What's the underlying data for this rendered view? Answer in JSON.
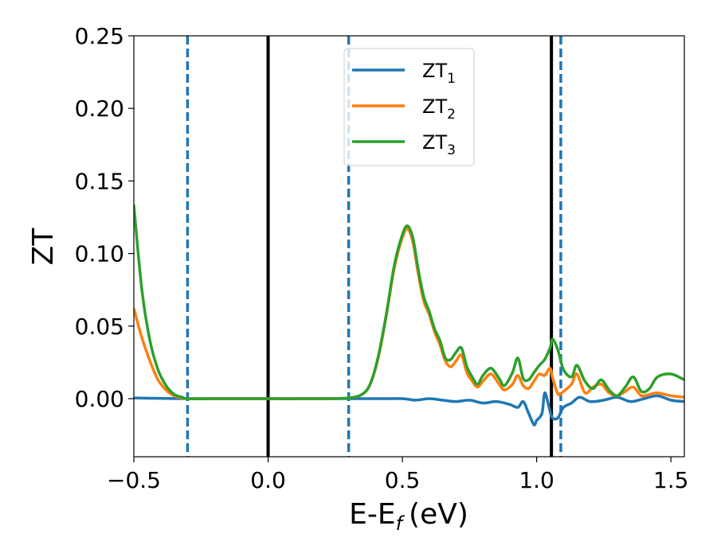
{
  "chart_data": {
    "type": "line",
    "xlabel": "E-E",
    "xlabel_sub": "f",
    "xlabel_unit": "(eV)",
    "ylabel": "ZT",
    "xlim": [
      -0.5,
      1.55
    ],
    "ylim": [
      -0.04,
      0.25
    ],
    "x_ticks": [
      -0.5,
      0.0,
      0.5,
      1.0,
      1.5
    ],
    "x_tick_labels": [
      "−0.5",
      "0.0",
      "0.5",
      "1.0",
      "1.5"
    ],
    "y_ticks": [
      0.0,
      0.05,
      0.1,
      0.15,
      0.2,
      0.25
    ],
    "y_tick_labels": [
      "0.00",
      "0.05",
      "0.10",
      "0.15",
      "0.20",
      "0.25"
    ],
    "grid": false,
    "legend_position": "top-center",
    "vertical_lines": [
      {
        "x": -0.3,
        "style": "dashed",
        "color": "#1f77b4"
      },
      {
        "x": 0.0,
        "style": "solid",
        "color": "#000000"
      },
      {
        "x": 0.3,
        "style": "dashed",
        "color": "#1f77b4"
      },
      {
        "x": 1.055,
        "style": "solid",
        "color": "#000000"
      },
      {
        "x": 1.09,
        "style": "dashed",
        "color": "#1f77b4"
      }
    ],
    "series": [
      {
        "name": "ZT",
        "name_sub": "1",
        "color": "#1f77b4",
        "x": [
          -0.5,
          -0.4,
          -0.3,
          -0.2,
          0.0,
          0.2,
          0.4,
          0.5,
          0.55,
          0.6,
          0.65,
          0.7,
          0.75,
          0.8,
          0.85,
          0.9,
          0.93,
          0.95,
          0.97,
          0.99,
          1.0,
          1.02,
          1.03,
          1.045,
          1.055,
          1.065,
          1.08,
          1.1,
          1.13,
          1.16,
          1.2,
          1.25,
          1.3,
          1.35,
          1.4,
          1.45,
          1.5,
          1.55
        ],
        "y": [
          0.0005,
          0.0002,
          0.0,
          0.0,
          0.0,
          0.0,
          0.0,
          0.0,
          -0.001,
          0.0,
          -0.001,
          -0.002,
          -0.001,
          -0.003,
          -0.002,
          -0.004,
          -0.006,
          -0.002,
          -0.01,
          -0.018,
          -0.015,
          -0.01,
          0.004,
          -0.005,
          -0.012,
          -0.014,
          -0.013,
          -0.006,
          -0.003,
          0.001,
          -0.002,
          -0.001,
          0.001,
          -0.002,
          0.0,
          0.002,
          -0.001,
          -0.002
        ]
      },
      {
        "name": "ZT",
        "name_sub": "2",
        "color": "#ff7f0e",
        "x": [
          -0.5,
          -0.47,
          -0.44,
          -0.41,
          -0.38,
          -0.35,
          -0.32,
          -0.3,
          -0.2,
          0.0,
          0.2,
          0.3,
          0.35,
          0.38,
          0.41,
          0.44,
          0.47,
          0.5,
          0.52,
          0.54,
          0.56,
          0.58,
          0.6,
          0.62,
          0.64,
          0.66,
          0.68,
          0.7,
          0.72,
          0.74,
          0.76,
          0.78,
          0.8,
          0.83,
          0.86,
          0.88,
          0.91,
          0.93,
          0.95,
          0.97,
          0.99,
          1.01,
          1.03,
          1.05,
          1.06,
          1.08,
          1.1,
          1.13,
          1.15,
          1.18,
          1.21,
          1.24,
          1.27,
          1.3,
          1.33,
          1.36,
          1.39,
          1.42,
          1.45,
          1.5,
          1.55
        ],
        "y": [
          0.062,
          0.042,
          0.026,
          0.013,
          0.006,
          0.002,
          0.0005,
          0.0,
          0.0,
          0.0,
          0.0,
          0.0005,
          0.003,
          0.01,
          0.028,
          0.057,
          0.09,
          0.111,
          0.117,
          0.107,
          0.085,
          0.067,
          0.058,
          0.046,
          0.037,
          0.026,
          0.022,
          0.026,
          0.03,
          0.018,
          0.012,
          0.008,
          0.012,
          0.017,
          0.01,
          0.006,
          0.01,
          0.016,
          0.009,
          0.007,
          0.012,
          0.017,
          0.016,
          0.021,
          0.014,
          0.003,
          0.005,
          0.01,
          0.017,
          0.004,
          0.008,
          0.01,
          0.004,
          0.002,
          0.005,
          0.008,
          0.002,
          0.003,
          0.004,
          0.002,
          0.001
        ]
      },
      {
        "name": "ZT",
        "name_sub": "3",
        "color": "#2ca02c",
        "x": [
          -0.5,
          -0.47,
          -0.44,
          -0.41,
          -0.38,
          -0.35,
          -0.32,
          -0.3,
          -0.2,
          0.0,
          0.2,
          0.3,
          0.35,
          0.38,
          0.41,
          0.44,
          0.47,
          0.5,
          0.52,
          0.54,
          0.56,
          0.58,
          0.6,
          0.62,
          0.64,
          0.66,
          0.68,
          0.7,
          0.72,
          0.74,
          0.76,
          0.78,
          0.8,
          0.83,
          0.86,
          0.88,
          0.91,
          0.93,
          0.95,
          0.97,
          0.99,
          1.01,
          1.03,
          1.05,
          1.06,
          1.08,
          1.1,
          1.13,
          1.15,
          1.18,
          1.21,
          1.24,
          1.27,
          1.3,
          1.33,
          1.36,
          1.39,
          1.42,
          1.45,
          1.5,
          1.55
        ],
        "y": [
          0.133,
          0.075,
          0.04,
          0.02,
          0.009,
          0.003,
          0.001,
          0.0,
          0.0,
          0.0,
          0.0,
          0.0005,
          0.003,
          0.01,
          0.029,
          0.058,
          0.092,
          0.113,
          0.119,
          0.11,
          0.088,
          0.07,
          0.06,
          0.048,
          0.04,
          0.028,
          0.027,
          0.032,
          0.035,
          0.022,
          0.015,
          0.01,
          0.016,
          0.021,
          0.014,
          0.009,
          0.018,
          0.028,
          0.014,
          0.013,
          0.018,
          0.023,
          0.027,
          0.035,
          0.041,
          0.033,
          0.02,
          0.015,
          0.023,
          0.012,
          0.007,
          0.013,
          0.006,
          0.002,
          0.008,
          0.015,
          0.005,
          0.007,
          0.015,
          0.017,
          0.013
        ]
      }
    ]
  }
}
